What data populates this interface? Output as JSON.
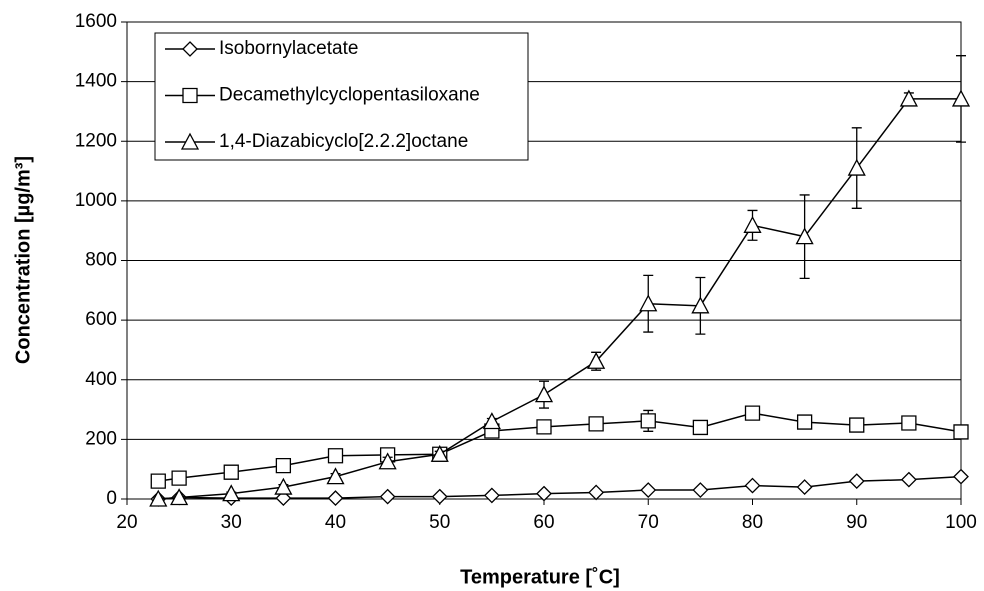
{
  "chart_data": {
    "type": "line",
    "x_label": "Temperature [˚C]",
    "y_label": "Concentration [µg/m³]",
    "x": [
      23,
      25,
      30,
      35,
      40,
      45,
      50,
      55,
      60,
      65,
      70,
      75,
      80,
      85,
      90,
      95,
      100
    ],
    "series": [
      {
        "name": "Isobornylacetate",
        "color": "#000000",
        "marker": "diamond",
        "values": [
          0,
          5,
          3,
          3,
          3,
          8,
          8,
          12,
          18,
          22,
          30,
          30,
          45,
          40,
          60,
          65,
          75
        ]
      },
      {
        "name": "Decamethylcyclopentasiloxane",
        "color": "#000000",
        "marker": "square",
        "values": [
          60,
          70,
          90,
          112,
          145,
          148,
          150,
          228,
          242,
          252,
          262,
          240,
          288,
          258,
          248,
          255,
          225
        ],
        "errors": [
          5,
          5,
          8,
          8,
          10,
          10,
          10,
          12,
          10,
          12,
          35,
          12,
          20,
          15,
          12,
          10,
          12
        ]
      },
      {
        "name": "1,4-Diazabicyclo[2.2.2]octane",
        "color": "#000000",
        "marker": "triangle",
        "values": [
          0,
          5,
          18,
          40,
          75,
          125,
          150,
          260,
          350,
          462,
          655,
          648,
          918,
          880,
          1110,
          1342,
          1342
        ],
        "errors": [
          3,
          3,
          5,
          8,
          10,
          15,
          10,
          10,
          45,
          30,
          95,
          95,
          50,
          140,
          135,
          20,
          145
        ]
      }
    ],
    "xlim": [
      20,
      100
    ],
    "xticks": [
      20,
      30,
      40,
      50,
      60,
      70,
      80,
      90,
      100
    ],
    "ylim": [
      0,
      1600
    ],
    "yticks": [
      0,
      200,
      400,
      600,
      800,
      1000,
      1200,
      1400,
      1600
    ],
    "grid": true,
    "legend": "upper-left"
  }
}
